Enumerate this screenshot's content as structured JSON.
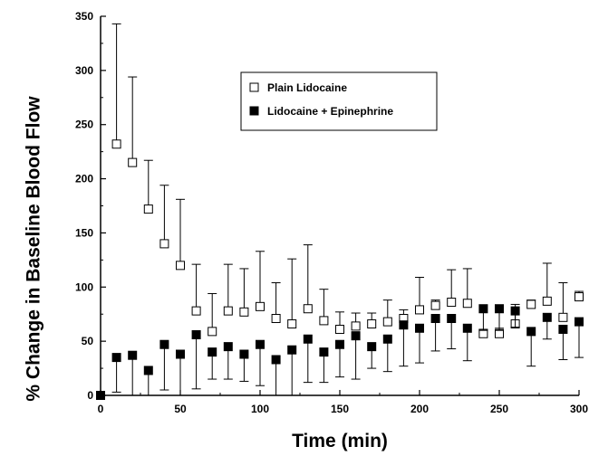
{
  "chart_data": {
    "type": "scatter",
    "title": "",
    "xlabel": "Time (min)",
    "ylabel": "% Change in Baseline Blood Flow",
    "xlim": [
      0,
      300
    ],
    "ylim": [
      0,
      350
    ],
    "xticks": [
      0,
      50,
      100,
      150,
      200,
      250,
      300
    ],
    "yticks": [
      0,
      50,
      100,
      150,
      200,
      250,
      300,
      350
    ],
    "grid": false,
    "legend_position": "top-right",
    "series": [
      {
        "name": "Plain Lidocaine",
        "marker": "open-square",
        "error_direction": "up",
        "x": [
          0,
          10,
          20,
          30,
          40,
          50,
          60,
          70,
          80,
          90,
          100,
          110,
          120,
          130,
          140,
          150,
          160,
          170,
          180,
          190,
          200,
          210,
          220,
          230,
          240,
          250,
          260,
          270,
          280,
          290,
          300
        ],
        "y": [
          0,
          232,
          215,
          172,
          140,
          120,
          78,
          59,
          78,
          77,
          82,
          71,
          66,
          80,
          69,
          61,
          64,
          66,
          68,
          71,
          79,
          83,
          86,
          85,
          57,
          57,
          66,
          84,
          87,
          72,
          91
        ],
        "err": [
          0,
          111,
          79,
          45,
          54,
          61,
          43,
          35,
          43,
          40,
          51,
          33,
          60,
          59,
          29,
          16,
          12,
          10,
          20,
          8,
          30,
          5,
          30,
          32,
          4,
          5,
          18,
          4,
          35,
          32,
          5
        ]
      },
      {
        "name": "Lidocaine + Epinephrine",
        "marker": "filled-square",
        "error_direction": "down",
        "x": [
          0,
          10,
          20,
          30,
          40,
          50,
          60,
          70,
          80,
          90,
          100,
          110,
          120,
          130,
          140,
          150,
          160,
          170,
          180,
          190,
          200,
          210,
          220,
          230,
          240,
          250,
          260,
          270,
          280,
          290,
          300
        ],
        "y": [
          0,
          35,
          37,
          23,
          47,
          38,
          56,
          40,
          45,
          38,
          47,
          33,
          42,
          52,
          40,
          47,
          55,
          45,
          52,
          65,
          62,
          71,
          71,
          62,
          80,
          80,
          78,
          59,
          72,
          61,
          68
        ],
        "err": [
          0,
          32,
          38,
          23,
          42,
          38,
          50,
          25,
          30,
          25,
          38,
          33,
          42,
          40,
          28,
          30,
          40,
          20,
          30,
          38,
          32,
          30,
          28,
          30,
          20,
          20,
          15,
          32,
          20,
          28,
          33
        ]
      }
    ]
  }
}
